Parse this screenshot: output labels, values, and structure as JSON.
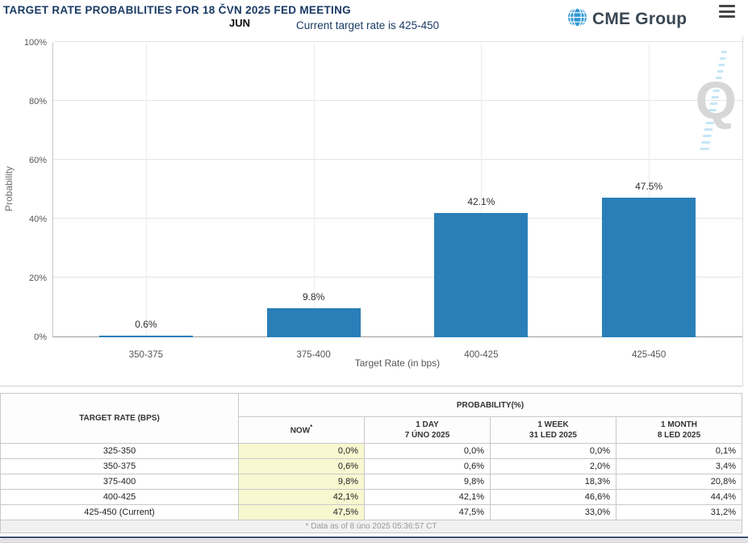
{
  "header": {
    "title": "TARGET RATE PROBABILITIES FOR 18 ČVN 2025 FED MEETING",
    "month_label": "JUN",
    "current_rate_note": "Current target rate is 425-450",
    "logo_text": "CME Group"
  },
  "chart_data": {
    "type": "bar",
    "categories": [
      "350-375",
      "375-400",
      "400-425",
      "425-450"
    ],
    "values": [
      0.6,
      9.8,
      42.1,
      47.5
    ],
    "value_labels": [
      "0.6%",
      "9.8%",
      "42.1%",
      "47.5%"
    ],
    "xlabel": "Target Rate (in bps)",
    "ylabel": "Probability",
    "ylim": [
      0,
      100
    ],
    "ytick_values": [
      0,
      20,
      40,
      60,
      80,
      100
    ],
    "ytick_labels": [
      "0%",
      "20%",
      "40%",
      "60%",
      "80%",
      "100%"
    ],
    "grid": true,
    "legend": "none",
    "bar_color": "#2a7fb8",
    "watermark_letter": "Q"
  },
  "table": {
    "col1_header": "TARGET RATE (BPS)",
    "group_header": "PROBABILITY(%)",
    "sub_headers": [
      {
        "line1": "NOW",
        "sup": "*",
        "line2": ""
      },
      {
        "line1": "1 DAY",
        "sup": "",
        "line2": "7 ÚNO 2025"
      },
      {
        "line1": "1 WEEK",
        "sup": "",
        "line2": "31 LED 2025"
      },
      {
        "line1": "1 MONTH",
        "sup": "",
        "line2": "8 LED 2025"
      }
    ],
    "rows": [
      {
        "label": "325-350",
        "now": "0,0%",
        "day": "0,0%",
        "week": "0,0%",
        "month": "0,1%"
      },
      {
        "label": "350-375",
        "now": "0,6%",
        "day": "0,6%",
        "week": "2,0%",
        "month": "3,4%"
      },
      {
        "label": "375-400",
        "now": "9,8%",
        "day": "9,8%",
        "week": "18,3%",
        "month": "20,8%"
      },
      {
        "label": "400-425",
        "now": "42,1%",
        "day": "42,1%",
        "week": "46,6%",
        "month": "44,4%"
      },
      {
        "label": "425-450 (Current)",
        "now": "47,5%",
        "day": "47,5%",
        "week": "33,0%",
        "month": "31,2%"
      }
    ],
    "footnote": "* Data as of 8 úno 2025 05:36:57 CT",
    "now_highlight_color": "#f7f7d0"
  },
  "colors": {
    "title_navy": "#1a3a64",
    "bar_blue": "#2a7fb8",
    "logo_globe_blue": "#2f97d4",
    "bottom_navy": "#3c4c72"
  }
}
